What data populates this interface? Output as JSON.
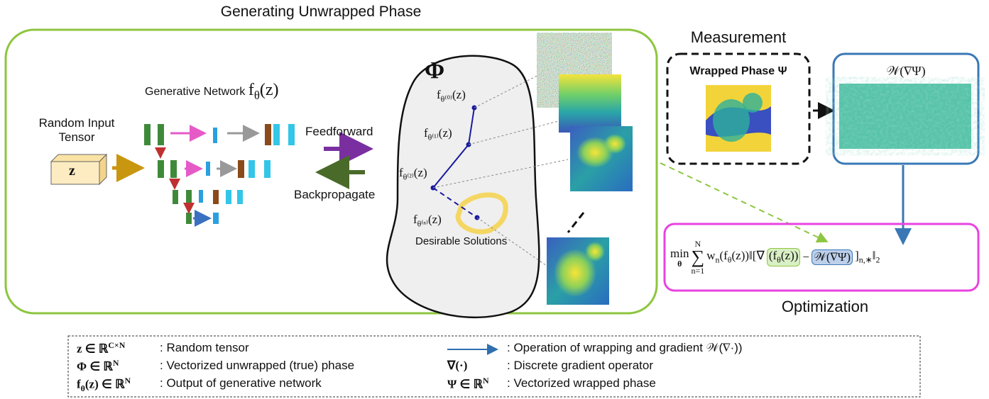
{
  "title": "Generating Unwrapped Phase",
  "network": {
    "label": "Generative Network",
    "fn": [
      {
        "t": "f"
      },
      {
        "sub": "θ"
      },
      {
        "t": "(z)"
      }
    ]
  },
  "input": {
    "label": "Random Input Tensor",
    "tensor": "z"
  },
  "feedforward": "Feedforward",
  "backpropagate": "Backpropagate",
  "space": {
    "symbol": "Φ",
    "iterates": [
      [
        {
          "t": "f"
        },
        {
          "sub": "θ⁽⁰⁾"
        },
        {
          "t": "(z)"
        }
      ],
      [
        {
          "t": "f"
        },
        {
          "sub": "θ⁽¹⁾"
        },
        {
          "t": "(z)"
        }
      ],
      [
        {
          "t": "f"
        },
        {
          "sub": "θ⁽²⁾"
        },
        {
          "t": "(z)"
        }
      ],
      [
        {
          "t": "f"
        },
        {
          "sub": "θ⁽ⁿ⁾"
        },
        {
          "t": "(z)"
        }
      ]
    ],
    "solutions": "Desirable Solutions"
  },
  "measurement": {
    "title": "Measurement",
    "wrapped": "Wrapped Phase Ψ",
    "gradient": "𝒲(∇Ψ)"
  },
  "optimization": {
    "title": "Optimization",
    "formula": {
      "min": "min",
      "min_sub": "θ",
      "sum": "∑",
      "sum_top": "N",
      "sum_bottom": "n=1",
      "body": [
        {
          "t": "w"
        },
        {
          "sub": "n"
        },
        {
          "t": "(f"
        },
        {
          "sub": "θ"
        },
        {
          "t": "(z))‖[∇"
        }
      ],
      "green": [
        {
          "t": "(f"
        },
        {
          "sub": "θ"
        },
        {
          "t": "(z))"
        }
      ],
      "minus": "−",
      "blue": [
        {
          "t": "𝒲(∇Ψ)"
        }
      ],
      "tail": [
        {
          "t": "]"
        },
        {
          "sub": "n,∗"
        },
        {
          "t": "‖"
        },
        {
          "sub": "2"
        }
      ]
    }
  },
  "legend": {
    "left": [
      {
        "symbol": [
          {
            "t": "z ∈ ℝ"
          },
          {
            "sup": "C×N"
          }
        ],
        "desc": ": Random tensor"
      },
      {
        "symbol": [
          {
            "t": "Φ ∈ ℝ"
          },
          {
            "sup": "N"
          }
        ],
        "desc": ": Vectorized unwrapped (true) phase"
      },
      {
        "symbol": [
          {
            "t": "f"
          },
          {
            "sub": "θ"
          },
          {
            "t": "(z) ∈ ℝ"
          },
          {
            "sup": "N"
          }
        ],
        "desc": ": Output of generative network"
      }
    ],
    "right": [
      {
        "symbol": [],
        "desc": ": Operation of wrapping and gradient 𝒲(∇·))"
      },
      {
        "symbol": [
          {
            "t": "∇(·)"
          }
        ],
        "desc": ": Discrete gradient operator"
      },
      {
        "symbol": [
          {
            "t": "Ψ ∈ ℝ"
          },
          {
            "sup": "N"
          }
        ],
        "desc": ": Vectorized wrapped phase"
      }
    ]
  }
}
